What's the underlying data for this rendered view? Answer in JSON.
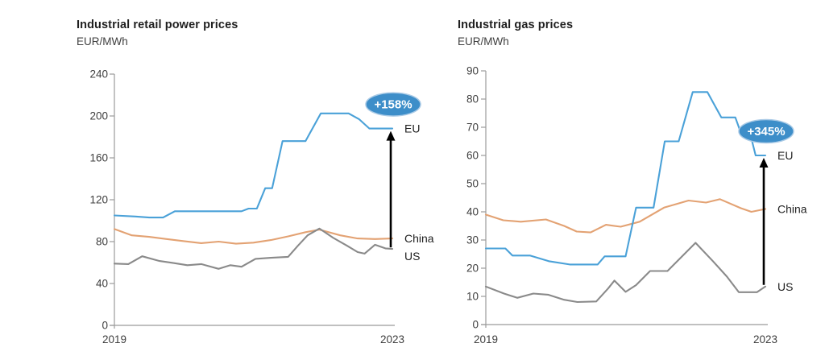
{
  "chart_data": [
    {
      "type": "line",
      "title": "Industrial retail power prices",
      "ylabel": "EUR/MWh",
      "x_range": [
        2019,
        2023
      ],
      "x_tick_labels": [
        "2019",
        "2023"
      ],
      "y_ticks": [
        0,
        40,
        80,
        120,
        160,
        200,
        240
      ],
      "ylim": [
        0,
        240
      ],
      "grid": false,
      "legend_position": "right-of-line-ends",
      "badge": {
        "text": "+158%",
        "fill": "#3d8ec9",
        "text_color": "#ffffff"
      },
      "arrow": {
        "from": "US",
        "to": "EU"
      },
      "series": [
        {
          "name": "EU",
          "color": "#4aa1d8",
          "points": [
            [
              2019.0,
              105
            ],
            [
              2019.3,
              104
            ],
            [
              2019.5,
              103
            ],
            [
              2019.7,
              103
            ],
            [
              2019.87,
              109
            ],
            [
              2020.83,
              109
            ],
            [
              2020.93,
              111.5
            ],
            [
              2021.05,
              111.5
            ],
            [
              2021.17,
              131
            ],
            [
              2021.27,
              131
            ],
            [
              2021.42,
              176
            ],
            [
              2021.75,
              176
            ],
            [
              2021.97,
              202.5
            ],
            [
              2022.37,
              202.5
            ],
            [
              2022.52,
              197
            ],
            [
              2022.67,
              188
            ],
            [
              2023.0,
              188
            ]
          ]
        },
        {
          "name": "China",
          "color": "#e3a273",
          "points": [
            [
              2019.0,
              92
            ],
            [
              2019.25,
              86
            ],
            [
              2019.5,
              84.5
            ],
            [
              2019.75,
              82.5
            ],
            [
              2020.0,
              80.5
            ],
            [
              2020.25,
              78.5
            ],
            [
              2020.5,
              80
            ],
            [
              2020.75,
              78
            ],
            [
              2021.0,
              79
            ],
            [
              2021.25,
              81.5
            ],
            [
              2021.5,
              85
            ],
            [
              2021.75,
              89
            ],
            [
              2021.95,
              91.5
            ],
            [
              2022.25,
              86
            ],
            [
              2022.5,
              83
            ],
            [
              2022.75,
              82.5
            ],
            [
              2023.0,
              83
            ]
          ]
        },
        {
          "name": "US",
          "color": "#8a8a8a",
          "points": [
            [
              2019.0,
              59
            ],
            [
              2019.2,
              58.5
            ],
            [
              2019.4,
              66
            ],
            [
              2019.65,
              61.5
            ],
            [
              2019.85,
              59.5
            ],
            [
              2020.05,
              57.5
            ],
            [
              2020.25,
              58.5
            ],
            [
              2020.5,
              54
            ],
            [
              2020.67,
              57.5
            ],
            [
              2020.83,
              56
            ],
            [
              2021.03,
              63.5
            ],
            [
              2021.25,
              64.5
            ],
            [
              2021.5,
              65.5
            ],
            [
              2021.64,
              76
            ],
            [
              2021.78,
              86
            ],
            [
              2021.95,
              92.5
            ],
            [
              2022.15,
              83.5
            ],
            [
              2022.35,
              76
            ],
            [
              2022.5,
              70
            ],
            [
              2022.6,
              68.5
            ],
            [
              2022.75,
              77
            ],
            [
              2022.9,
              73.5
            ],
            [
              2023.0,
              73
            ]
          ]
        }
      ]
    },
    {
      "type": "line",
      "title": "Industrial gas prices",
      "ylabel": "EUR/MWh",
      "x_range": [
        2019,
        2023
      ],
      "x_tick_labels": [
        "2019",
        "2023"
      ],
      "y_ticks": [
        0,
        10,
        20,
        30,
        40,
        50,
        60,
        70,
        80,
        90
      ],
      "ylim": [
        0,
        90
      ],
      "grid": false,
      "legend_position": "right-of-line-ends",
      "badge": {
        "text": "+345%",
        "fill": "#3d8ec9",
        "text_color": "#ffffff"
      },
      "arrow": {
        "from": "US",
        "to": "EU"
      },
      "series": [
        {
          "name": "EU",
          "color": "#4aa1d8",
          "points": [
            [
              2019.0,
              27
            ],
            [
              2019.28,
              27
            ],
            [
              2019.38,
              24.5
            ],
            [
              2019.63,
              24.5
            ],
            [
              2019.9,
              22.5
            ],
            [
              2020.2,
              21.3
            ],
            [
              2020.6,
              21.3
            ],
            [
              2020.7,
              24.2
            ],
            [
              2021.0,
              24.2
            ],
            [
              2021.15,
              41.5
            ],
            [
              2021.4,
              41.5
            ],
            [
              2021.56,
              65
            ],
            [
              2021.76,
              65
            ],
            [
              2021.96,
              82.5
            ],
            [
              2022.17,
              82.5
            ],
            [
              2022.37,
              73.5
            ],
            [
              2022.57,
              73.5
            ],
            [
              2022.65,
              68
            ],
            [
              2022.78,
              68
            ],
            [
              2022.86,
              60
            ],
            [
              2023.0,
              60
            ]
          ]
        },
        {
          "name": "China",
          "color": "#e3a273",
          "points": [
            [
              2019.0,
              39
            ],
            [
              2019.25,
              37
            ],
            [
              2019.5,
              36.5
            ],
            [
              2019.86,
              37.3
            ],
            [
              2020.12,
              35
            ],
            [
              2020.3,
              33
            ],
            [
              2020.5,
              32.7
            ],
            [
              2020.72,
              35.4
            ],
            [
              2020.93,
              34.7
            ],
            [
              2021.2,
              36.5
            ],
            [
              2021.55,
              41.5
            ],
            [
              2021.9,
              44
            ],
            [
              2022.15,
              43.3
            ],
            [
              2022.35,
              44.5
            ],
            [
              2022.65,
              41.3
            ],
            [
              2022.8,
              40
            ],
            [
              2023.0,
              41
            ]
          ]
        },
        {
          "name": "US",
          "color": "#8a8a8a",
          "points": [
            [
              2019.0,
              13.5
            ],
            [
              2019.26,
              11
            ],
            [
              2019.45,
              9.5
            ],
            [
              2019.68,
              11
            ],
            [
              2019.89,
              10.6
            ],
            [
              2020.12,
              8.8
            ],
            [
              2020.31,
              8
            ],
            [
              2020.58,
              8.2
            ],
            [
              2020.75,
              12.8
            ],
            [
              2020.84,
              15.6
            ],
            [
              2021.0,
              11.6
            ],
            [
              2021.15,
              14
            ],
            [
              2021.35,
              19
            ],
            [
              2021.6,
              19
            ],
            [
              2021.8,
              24
            ],
            [
              2022.0,
              29
            ],
            [
              2022.25,
              22.5
            ],
            [
              2022.45,
              17
            ],
            [
              2022.62,
              11.5
            ],
            [
              2022.88,
              11.5
            ],
            [
              2023.0,
              13.5
            ]
          ]
        }
      ]
    }
  ]
}
